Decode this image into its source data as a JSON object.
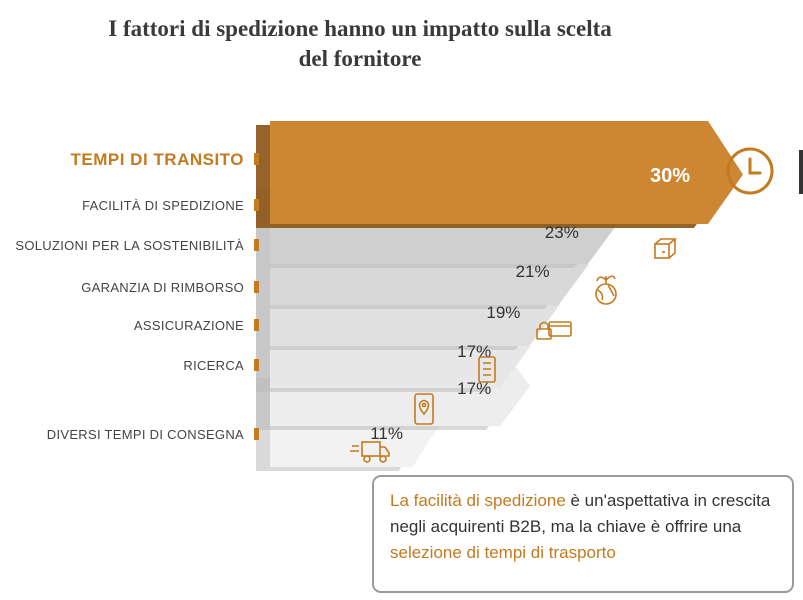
{
  "title_line1": "I fattori di spedizione hanno un impatto sulla scelta",
  "title_line2": "del fornitore",
  "chart_data": {
    "type": "bar",
    "categories": [
      "TEMPI DI TRANSITO",
      "FACILITÀ DI SPEDIZIONE",
      "SOLUZIONI PER LA SOSTENIBILITÀ",
      "GARANZIA DI RIMBORSO",
      "ASSICURAZIONE",
      "RICERCA",
      "DIVERSI TEMPI DI CONSEGNA"
    ],
    "values": [
      30,
      23,
      21,
      19,
      17,
      17,
      11
    ],
    "value_labels": [
      "30%",
      "23%",
      "21%",
      "19%",
      "17%",
      "17%",
      "11%"
    ],
    "icons": [
      "clock-icon",
      "package-icon",
      "globe-plant-icon",
      "card-shield-icon",
      "checklist-icon",
      "mobile-location-icon",
      "delivery-truck-icon"
    ],
    "highlight_index": 0,
    "highlight_color": "#cd8632",
    "bar_colors": [
      "#cd8632",
      "#cfcfcf",
      "#d8d8d8",
      "#e0e0e0",
      "#e7e7e7",
      "#ededed",
      "#f2f2f2"
    ],
    "accent_color": "#c47a1e"
  },
  "callout": {
    "part1": "La facilità di spedizione",
    "part2": " è un'aspettativa in crescita negli acquirenti B2B, ma la chiave è offrire una ",
    "part3": "selezione di tempi di trasporto"
  }
}
